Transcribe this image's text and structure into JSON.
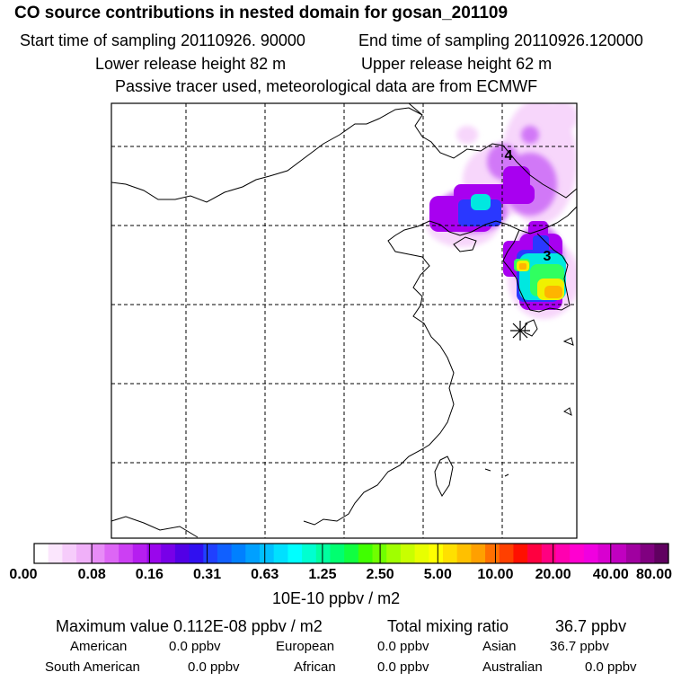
{
  "header": {
    "title": "CO  source contributions in nested domain for gosan_201109",
    "start_label": "Start time of sampling 20110926. 90000",
    "end_label": "End time of sampling 20110926.120000",
    "lower_label": "Lower release height   82 m",
    "upper_label": "Upper release height   62 m",
    "note": "Passive tracer used, meteorological data are from ECMWF"
  },
  "map": {
    "region_markers": [
      "4",
      "3"
    ],
    "receptor_symbol": "*",
    "colors": {
      "purple": "#a800f0",
      "blue": "#2a38ff",
      "cyan": "#00e8e0",
      "green": "#30ff60",
      "yellow": "#f0f000",
      "orange": "#ffb400"
    }
  },
  "colorbar": {
    "tick_labels": [
      "0.00",
      "0.08",
      "0.16",
      "0.31",
      "0.63",
      "1.25",
      "2.50",
      "5.00",
      "10.00",
      "20.00",
      "40.00",
      "80.00"
    ],
    "unit": "10E-10 ppbv / m2",
    "colors": [
      "#ffffff",
      "#fbe6fd",
      "#f6ccfb",
      "#f0b0f9",
      "#e88cf7",
      "#dd66f5",
      "#cc3ff3",
      "#b61ef0",
      "#9a06ec",
      "#7800e8",
      "#5200e6",
      "#3010f0",
      "#2040ff",
      "#1060ff",
      "#0080ff",
      "#00a0ff",
      "#00c0ff",
      "#00e0ff",
      "#00ffff",
      "#00ffd0",
      "#00ffa0",
      "#00ff70",
      "#10ff40",
      "#40ff00",
      "#70ff00",
      "#a0ff00",
      "#c8ff00",
      "#e8ff00",
      "#ffff00",
      "#ffe000",
      "#ffc000",
      "#ffa000",
      "#ff7000",
      "#ff4000",
      "#ff1000",
      "#ff0040",
      "#ff0080",
      "#ff00b0",
      "#ff00d0",
      "#f000e0",
      "#d800d0",
      "#c000c0",
      "#a000a0",
      "#800080",
      "#600060"
    ]
  },
  "summary": {
    "max_label": "Maximum value  0.112E-08 ppbv / m2",
    "total_label": "Total mixing ratio",
    "total_value": "36.7 ppbv",
    "rows": [
      [
        [
          "American",
          "0.0 ppbv"
        ],
        [
          "European",
          "0.0 ppbv"
        ],
        [
          "Asian",
          "36.7 ppbv"
        ]
      ],
      [
        [
          "South American",
          "0.0 ppbv"
        ],
        [
          "African",
          "0.0 ppbv"
        ],
        [
          "Australian",
          "0.0 ppbv"
        ]
      ]
    ]
  }
}
